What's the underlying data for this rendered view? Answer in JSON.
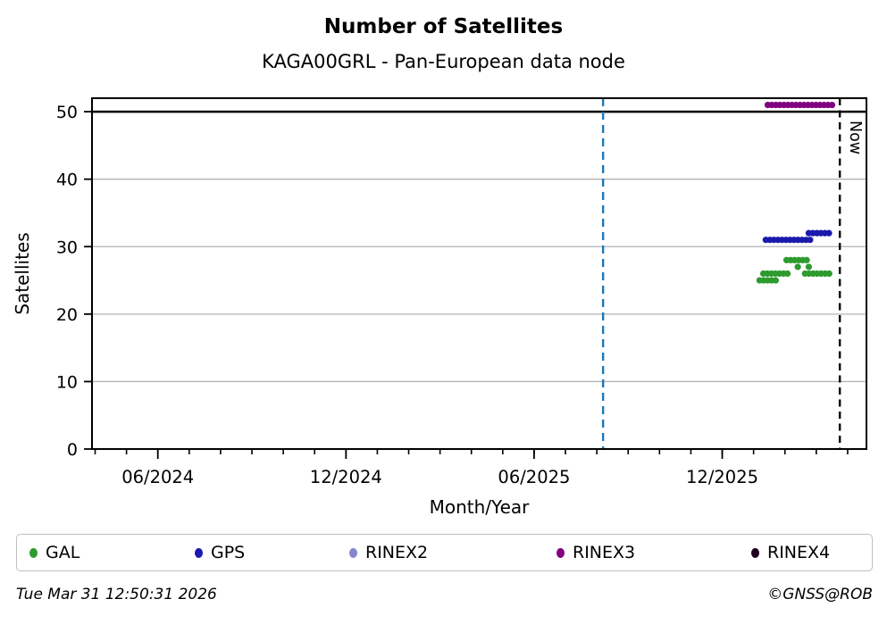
{
  "chart": {
    "title": "Number of Satellites",
    "subtitle": "KAGA00GRL - Pan-European data node",
    "footer_left": "Tue Mar 31 12:50:31 2026",
    "footer_right": "©GNSS@ROB"
  },
  "chart_data": {
    "type": "scatter",
    "title": "Number of Satellites",
    "subtitle": "KAGA00GRL - Pan-European data node",
    "xlabel": "Month/Year",
    "ylabel": "Satellites",
    "ylim": [
      0,
      52
    ],
    "yticks": [
      0,
      10,
      20,
      30,
      40,
      50
    ],
    "grid": "horizontal-light-gray",
    "separator_line_y": 50,
    "x_axis_unit": "months since 2024-01-01 (decimal)",
    "xlim": [
      2.9,
      27.6
    ],
    "xticks_major": [
      {
        "month": 5,
        "label": "06/2024"
      },
      {
        "month": 11,
        "label": "12/2024"
      },
      {
        "month": 17,
        "label": "06/2025"
      },
      {
        "month": 23,
        "label": "12/2025"
      }
    ],
    "xticks_minor": {
      "from": 3,
      "to": 27,
      "step": 1
    },
    "annotations": [
      {
        "kind": "vline",
        "name": "blue-dashed-marker",
        "x": 19.2,
        "color": "#1f77b4",
        "dash": [
          9,
          6
        ],
        "label": ""
      },
      {
        "kind": "vline",
        "name": "now-marker",
        "x": 26.75,
        "color": "#000000",
        "dash": [
          8,
          5.5
        ],
        "label": "Now"
      }
    ],
    "series": [
      {
        "name": "GAL",
        "color": "#2e9b2e",
        "segments": [
          {
            "y": 25,
            "x0": 24.19,
            "x1": 24.82
          },
          {
            "y": 26,
            "x0": 24.31,
            "x1": 25.19
          },
          {
            "y": 28,
            "x0": 25.05,
            "x1": 25.81
          },
          {
            "y": 26,
            "x0": 25.64,
            "x1": 26.52
          }
        ],
        "points": [
          {
            "x": 25.41,
            "y": 27
          },
          {
            "x": 25.76,
            "y": 27
          }
        ]
      },
      {
        "name": "GPS",
        "color": "#1a1aad",
        "segments": [
          {
            "y": 31,
            "x0": 24.39,
            "x1": 25.9
          },
          {
            "y": 32,
            "x0": 25.76,
            "x1": 26.47
          }
        ],
        "points": []
      },
      {
        "name": "RINEX2",
        "color": "#8787cf",
        "segments": [],
        "points": []
      },
      {
        "name": "RINEX3",
        "color": "#800080",
        "segments": [
          {
            "y": 51,
            "x0": 24.45,
            "x1": 26.52
          }
        ],
        "points": []
      },
      {
        "name": "RINEX4",
        "color": "#200020",
        "segments": [],
        "points": []
      }
    ],
    "legend": {
      "position": "bottom",
      "entries": [
        {
          "label": "GAL",
          "color": "#2e9b2e"
        },
        {
          "label": "GPS",
          "color": "#1a1aad"
        },
        {
          "label": "RINEX2",
          "color": "#8787cf"
        },
        {
          "label": "RINEX3",
          "color": "#800080"
        },
        {
          "label": "RINEX4",
          "color": "#200020"
        }
      ]
    }
  }
}
